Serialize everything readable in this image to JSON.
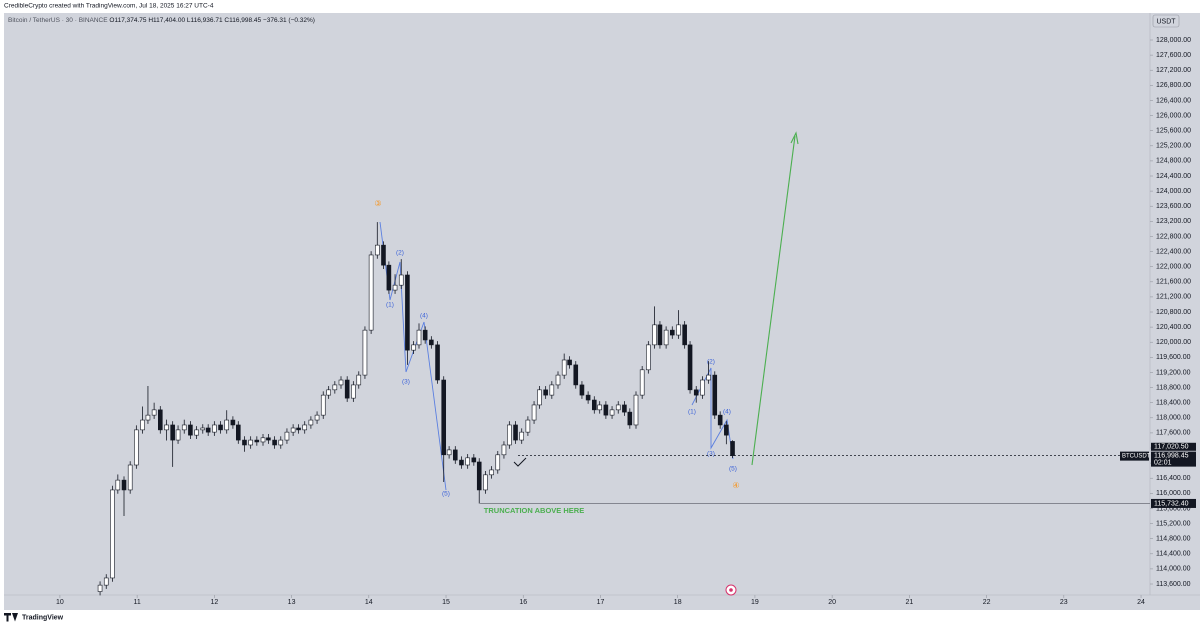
{
  "header": {
    "author": "CredibleCrypto created with TradingView.com, Jul 18, 2025 16:27 UTC-4"
  },
  "chart_data": {
    "type": "candlestick",
    "legend": {
      "symbol": "Bitcoin / TetherUS · 30 · BINANCE",
      "open": "O117,374.75",
      "high": "H117,404.00",
      "low": "L116,936.71",
      "close": "C116,998.45",
      "change": "−376.31 (−0.32%)"
    },
    "currency": "USDT",
    "up_color": "#ffffff",
    "down_color": "#131722",
    "wick_color": "#131722",
    "x": [
      10.52,
      10.6,
      10.68,
      10.75,
      10.83,
      10.91,
      10.99,
      11.07,
      11.14,
      11.22,
      11.3,
      11.38,
      11.46,
      11.53,
      11.61,
      11.69,
      11.77,
      11.85,
      11.92,
      12.0,
      12.08,
      12.16,
      12.24,
      12.31,
      12.39,
      12.47,
      12.55,
      12.63,
      12.7,
      12.78,
      12.86,
      12.94,
      13.02,
      13.09,
      13.17,
      13.25,
      13.33,
      13.41,
      13.48,
      13.56,
      13.64,
      13.72,
      13.8,
      13.87,
      13.95,
      14.03,
      14.11,
      14.19,
      14.26,
      14.34,
      14.42,
      14.5,
      14.58,
      14.65,
      14.73,
      14.81,
      14.89,
      14.97,
      15.04,
      15.12,
      15.2,
      15.28,
      15.36,
      15.43,
      15.51,
      15.59,
      15.67,
      15.75,
      15.82,
      15.9,
      15.98,
      16.06,
      16.14,
      16.21,
      16.29,
      16.37,
      16.45,
      16.53,
      16.6,
      16.68,
      16.76,
      16.84,
      16.92,
      16.99,
      17.07,
      17.15,
      17.23,
      17.31,
      17.38,
      17.46,
      17.54,
      17.62,
      17.7,
      17.77,
      17.85,
      17.93,
      18.01,
      18.09,
      18.16,
      18.24,
      18.32,
      18.4,
      18.48,
      18.55,
      18.63,
      18.71
    ],
    "open": [
      113400,
      113570,
      113760,
      116090,
      116350,
      116090,
      116750,
      117680,
      117940,
      118070,
      118210,
      117680,
      117810,
      117410,
      117680,
      117810,
      117540,
      117680,
      117730,
      117620,
      117810,
      117680,
      117940,
      117810,
      117410,
      117280,
      117410,
      117360,
      117470,
      117410,
      117280,
      117410,
      117620,
      117730,
      117680,
      117810,
      117940,
      118070,
      118600,
      118740,
      118870,
      119000,
      118520,
      118870,
      119130,
      120320,
      122310,
      122570,
      122040,
      121380,
      121510,
      121780,
      119790,
      119930,
      120320,
      120060,
      119930,
      119000,
      117020,
      117150,
      116880,
      116750,
      116940,
      116830,
      116090,
      116490,
      116620,
      117020,
      117280,
      117810,
      117410,
      117620,
      117940,
      118340,
      118740,
      118600,
      118870,
      119130,
      119530,
      119400,
      118870,
      118600,
      118470,
      118210,
      118340,
      118070,
      118210,
      118340,
      118150,
      117810,
      118600,
      119270,
      119930,
      120460,
      119930,
      120320,
      120190,
      120460,
      119930,
      118740,
      118600,
      119000,
      119130,
      118070,
      117810,
      117374.75
    ],
    "high": [
      113670,
      113860,
      116200,
      116500,
      116450,
      116850,
      117800,
      118300,
      118840,
      118400,
      118310,
      117950,
      117910,
      117800,
      117950,
      117910,
      117780,
      117830,
      117830,
      117910,
      117910,
      118200,
      118040,
      117910,
      117510,
      117510,
      117510,
      117570,
      117570,
      117510,
      117510,
      117720,
      117830,
      117830,
      117910,
      118040,
      118170,
      118700,
      118840,
      118970,
      119100,
      119100,
      118970,
      119230,
      120420,
      122410,
      123180,
      122670,
      122140,
      121800,
      122200,
      121880,
      120030,
      120500,
      120420,
      120160,
      120030,
      119100,
      117250,
      117250,
      116980,
      117040,
      117040,
      116930,
      116590,
      116720,
      117120,
      117380,
      117910,
      117910,
      117720,
      118040,
      118440,
      118840,
      118840,
      118970,
      119230,
      119700,
      119630,
      119500,
      118970,
      118700,
      118570,
      118440,
      118440,
      118310,
      118440,
      118440,
      118250,
      118700,
      119370,
      120030,
      120950,
      120560,
      120420,
      120420,
      120850,
      120560,
      120030,
      118840,
      119100,
      119500,
      119230,
      118170,
      117910,
      117404
    ],
    "low": [
      113300,
      113470,
      113660,
      115990,
      115400,
      115990,
      116650,
      117580,
      117840,
      117970,
      117580,
      117400,
      116700,
      117310,
      117580,
      117440,
      117440,
      117580,
      117520,
      117520,
      117580,
      117580,
      117710,
      117310,
      117100,
      117180,
      117260,
      117260,
      117310,
      117180,
      117180,
      117310,
      117520,
      117580,
      117580,
      117710,
      117840,
      117970,
      118500,
      118640,
      118770,
      118420,
      118420,
      118770,
      119030,
      120220,
      122210,
      121940,
      121280,
      121280,
      121410,
      119400,
      119690,
      119830,
      119960,
      119830,
      118900,
      116300,
      116920,
      116780,
      116650,
      116650,
      116730,
      115730,
      115990,
      116390,
      116520,
      116920,
      117180,
      117310,
      117310,
      117520,
      117840,
      118240,
      118500,
      118500,
      118770,
      119030,
      119300,
      118770,
      118500,
      118370,
      118110,
      118110,
      117970,
      117970,
      118110,
      118050,
      117710,
      117710,
      118500,
      119170,
      119830,
      119830,
      119830,
      120090,
      120090,
      119830,
      118640,
      118400,
      118500,
      118900,
      117970,
      117710,
      117300,
      116936.71
    ],
    "close": [
      113570,
      113760,
      116090,
      116350,
      116090,
      116750,
      117680,
      117940,
      118070,
      118210,
      117680,
      117810,
      117410,
      117680,
      117810,
      117540,
      117680,
      117730,
      117620,
      117810,
      117680,
      117940,
      117810,
      117410,
      117280,
      117410,
      117360,
      117470,
      117410,
      117280,
      117410,
      117620,
      117730,
      117680,
      117810,
      117940,
      118070,
      118600,
      118740,
      118870,
      119000,
      118520,
      118870,
      119130,
      120320,
      122310,
      122570,
      122040,
      121380,
      121510,
      121780,
      119790,
      119930,
      120320,
      120060,
      119930,
      119000,
      117020,
      117150,
      116880,
      116750,
      116940,
      116830,
      116090,
      116490,
      116620,
      117020,
      117280,
      117810,
      117410,
      117620,
      117940,
      118340,
      118740,
      118600,
      118870,
      119130,
      119530,
      119400,
      118870,
      118600,
      118470,
      118210,
      118340,
      118070,
      118210,
      118340,
      118150,
      117810,
      118600,
      119270,
      119930,
      120460,
      119930,
      120320,
      120190,
      120460,
      119930,
      118740,
      118600,
      119000,
      119130,
      118070,
      117810,
      117540,
      116998.45
    ],
    "xlim": [
      9.276,
      24.116
    ],
    "xticks": [
      10,
      11,
      12,
      13,
      14,
      15,
      16,
      17,
      18,
      19,
      20,
      21,
      22,
      23,
      24
    ],
    "ylim": [
      113309,
      128715
    ],
    "yticks": [
      {
        "value": 113600,
        "label": "113,600.00"
      },
      {
        "value": 114000,
        "label": "114,000.00"
      },
      {
        "value": 114400,
        "label": "114,400.00"
      },
      {
        "value": 114800,
        "label": "114,800.00"
      },
      {
        "value": 115200,
        "label": "115,200.00"
      },
      {
        "value": 115600,
        "label": "115,600.00"
      },
      {
        "value": 116000,
        "label": "116,000.00"
      },
      {
        "value": 116400,
        "label": "116,400.00"
      },
      {
        "value": 116800,
        "label": "116,800.00"
      },
      {
        "value": 117200,
        "label": "117,200.00"
      },
      {
        "value": 117600,
        "label": "117,600.00"
      },
      {
        "value": 118000,
        "label": "118,000.00"
      },
      {
        "value": 118400,
        "label": "118,400.00"
      },
      {
        "value": 118800,
        "label": "118,800.00"
      },
      {
        "value": 119200,
        "label": "119,200.00"
      },
      {
        "value": 119600,
        "label": "119,600.00"
      },
      {
        "value": 120000,
        "label": "120,000.00"
      },
      {
        "value": 120400,
        "label": "120,400.00"
      },
      {
        "value": 120800,
        "label": "120,800.00"
      },
      {
        "value": 121200,
        "label": "121,200.00"
      },
      {
        "value": 121600,
        "label": "121,600.00"
      },
      {
        "value": 122000,
        "label": "122,000.00"
      },
      {
        "value": 122400,
        "label": "122,400.00"
      },
      {
        "value": 122800,
        "label": "122,800.00"
      },
      {
        "value": 123200,
        "label": "123,200.00"
      },
      {
        "value": 123600,
        "label": "123,600.00"
      },
      {
        "value": 124000,
        "label": "124,000.00"
      },
      {
        "value": 124400,
        "label": "124,400.00"
      },
      {
        "value": 124800,
        "label": "124,800.00"
      },
      {
        "value": 125200,
        "label": "125,200.00"
      },
      {
        "value": 125600,
        "label": "125,600.00"
      },
      {
        "value": 126000,
        "label": "126,000.00"
      },
      {
        "value": 126400,
        "label": "126,400.00"
      },
      {
        "value": 126800,
        "label": "126,800.00"
      },
      {
        "value": 127200,
        "label": "127,200.00"
      },
      {
        "value": 127600,
        "label": "127,600.00"
      },
      {
        "value": 128000,
        "label": "128,000.00"
      }
    ],
    "price_lines": [
      {
        "value": 115732.4,
        "label": "115,732.40"
      }
    ],
    "high_marker": {
      "value": 117020.5,
      "label": "117,020.50"
    },
    "last_price": {
      "value": 116998.45,
      "label": "116,998.45",
      "symbol": "BTCUSDT",
      "countdown": "02:01"
    },
    "annotations": {
      "waves": [
        "③",
        "(2)",
        "(1)",
        "(4)",
        "(3)",
        "(5)",
        "(2)",
        "(1)",
        "(4)",
        "(3)",
        "(5)",
        "④"
      ],
      "note": "TRUNCATION ABOVE HERE"
    }
  },
  "footer": {
    "brand": "TradingView"
  }
}
